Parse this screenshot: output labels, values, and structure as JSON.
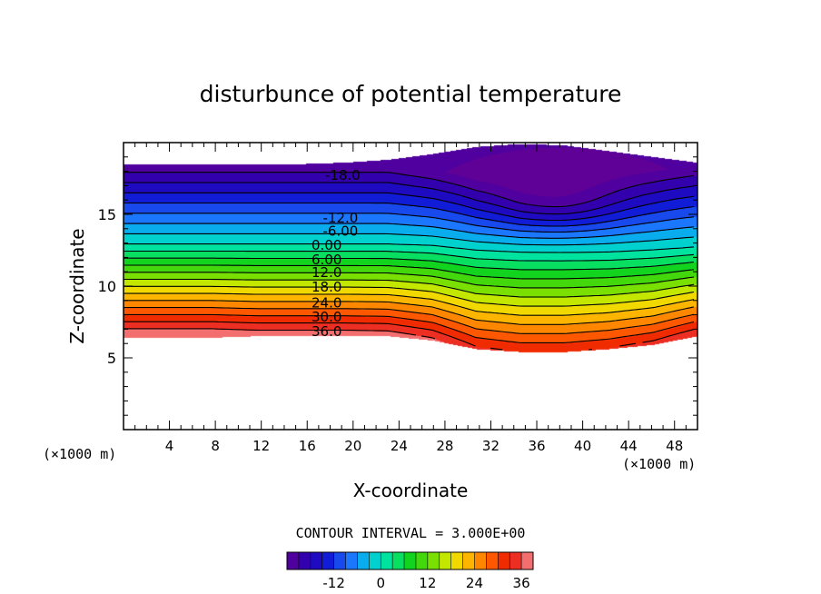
{
  "chart_data": {
    "type": "heatmap",
    "title": "disturbunce of potential temperature",
    "xlabel": "X-coordinate",
    "ylabel": "Z-coordinate",
    "x_unit": "(×1000 m)",
    "z_unit": "(×1000 m)",
    "xlim": [
      0,
      50
    ],
    "ylim": [
      0,
      20
    ],
    "x_ticks": [
      4,
      8,
      12,
      16,
      20,
      24,
      28,
      32,
      36,
      40,
      44,
      48
    ],
    "y_ticks": [
      5,
      10,
      15
    ],
    "contour_interval_text": "CONTOUR INTERVAL = 3.000E+00",
    "contour_labels": [
      {
        "text": "-18.0",
        "x": 19.1,
        "z": 17.8
      },
      {
        "text": "-12.0",
        "x": 18.9,
        "z": 14.8
      },
      {
        "text": "-6.00",
        "x": 18.9,
        "z": 13.9
      },
      {
        "text": "0.00",
        "x": 17.7,
        "z": 12.9
      },
      {
        "text": "6.00",
        "x": 17.7,
        "z": 11.9
      },
      {
        "text": "12.0",
        "x": 17.7,
        "z": 11.0
      },
      {
        "text": "18.0",
        "x": 17.7,
        "z": 10.0
      },
      {
        "text": "24.0",
        "x": 17.7,
        "z": 8.9
      },
      {
        "text": "30.0",
        "x": 17.7,
        "z": 7.9
      },
      {
        "text": "36.0",
        "x": 17.7,
        "z": 6.9
      }
    ],
    "colorbar": {
      "range": [
        -24,
        39
      ],
      "tick_values": [
        -12,
        0,
        12,
        24,
        36
      ],
      "tick_labels": [
        "-12",
        "0",
        "12",
        "24",
        "36"
      ]
    },
    "field": {
      "zero_level_height": [
        12.9,
        12.9,
        12.9,
        12.9,
        12.9,
        12.9,
        12.9,
        12.8,
        12.5,
        12.4,
        12.4,
        12.4,
        12.5,
        12.7
      ],
      "lower_edge_height": [
        6.4,
        6.4,
        6.4,
        6.5,
        6.5,
        6.5,
        6.5,
        6.2,
        5.6,
        5.4,
        5.4,
        5.6,
        5.9,
        6.5
      ],
      "upper_edge_height": [
        18.5,
        18.5,
        18.5,
        18.5,
        18.5,
        18.6,
        18.8,
        19.2,
        19.7,
        19.9,
        19.8,
        19.4,
        19.0,
        18.6
      ],
      "upper_gradient": [
        1.35,
        1.35,
        1.35,
        1.35,
        1.35,
        1.35,
        1.35,
        1.45,
        1.55,
        1.6,
        1.55,
        1.45,
        1.4,
        1.35
      ],
      "lower_gradient": [
        6.1,
        6.1,
        6.1,
        6.0,
        6.0,
        6.0,
        5.95,
        5.6,
        4.9,
        4.7,
        4.7,
        4.9,
        5.2,
        5.8
      ],
      "cold_core": {
        "x": 38,
        "z": 15.6,
        "amplitude": -6,
        "width_x": 6,
        "width_z": 2
      }
    }
  }
}
